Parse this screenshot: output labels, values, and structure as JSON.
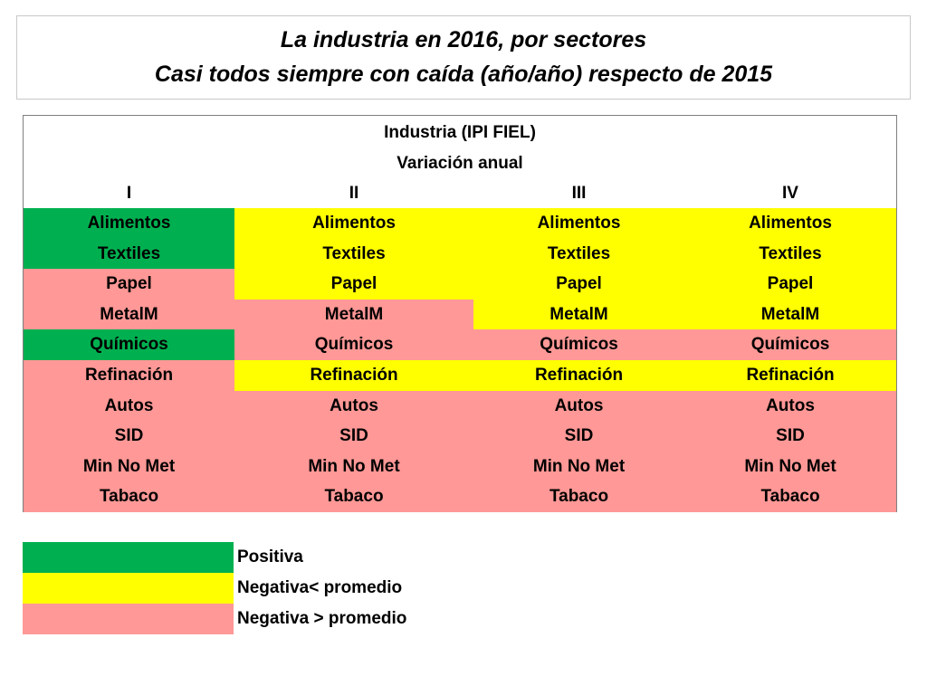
{
  "title": {
    "line1": "La industria en 2016, por sectores",
    "line2": "Casi todos siempre con caída (año/año) respecto de 2015"
  },
  "table": {
    "header1": "Industria (IPI FIEL)",
    "header2": "Variación anual",
    "quarters": [
      "I",
      "II",
      "III",
      "IV"
    ],
    "rows": [
      {
        "cells": [
          {
            "label": "Alimentos",
            "status": "positiva"
          },
          {
            "label": "Alimentos",
            "status": "negativa_menor"
          },
          {
            "label": "Alimentos",
            "status": "negativa_menor"
          },
          {
            "label": "Alimentos",
            "status": "negativa_menor"
          }
        ]
      },
      {
        "cells": [
          {
            "label": "Textiles",
            "status": "positiva"
          },
          {
            "label": "Textiles",
            "status": "negativa_menor"
          },
          {
            "label": "Textiles",
            "status": "negativa_menor"
          },
          {
            "label": "Textiles",
            "status": "negativa_menor"
          }
        ]
      },
      {
        "cells": [
          {
            "label": "Papel",
            "status": "negativa_mayor"
          },
          {
            "label": "Papel",
            "status": "negativa_menor"
          },
          {
            "label": "Papel",
            "status": "negativa_menor"
          },
          {
            "label": "Papel",
            "status": "negativa_menor"
          }
        ]
      },
      {
        "cells": [
          {
            "label": "MetalM",
            "status": "negativa_mayor"
          },
          {
            "label": "MetalM",
            "status": "negativa_mayor"
          },
          {
            "label": "MetalM",
            "status": "negativa_menor"
          },
          {
            "label": "MetalM",
            "status": "negativa_menor"
          }
        ]
      },
      {
        "cells": [
          {
            "label": "Químicos",
            "status": "positiva"
          },
          {
            "label": "Químicos",
            "status": "negativa_mayor"
          },
          {
            "label": "Químicos",
            "status": "negativa_mayor"
          },
          {
            "label": "Químicos",
            "status": "negativa_mayor"
          }
        ]
      },
      {
        "cells": [
          {
            "label": "Refinación",
            "status": "negativa_mayor"
          },
          {
            "label": "Refinación",
            "status": "negativa_menor"
          },
          {
            "label": "Refinación",
            "status": "negativa_menor"
          },
          {
            "label": "Refinación",
            "status": "negativa_menor"
          }
        ]
      },
      {
        "cells": [
          {
            "label": "Autos",
            "status": "negativa_mayor"
          },
          {
            "label": "Autos",
            "status": "negativa_mayor"
          },
          {
            "label": "Autos",
            "status": "negativa_mayor"
          },
          {
            "label": "Autos",
            "status": "negativa_mayor"
          }
        ]
      },
      {
        "cells": [
          {
            "label": "SID",
            "status": "negativa_mayor"
          },
          {
            "label": "SID",
            "status": "negativa_mayor"
          },
          {
            "label": "SID",
            "status": "negativa_mayor"
          },
          {
            "label": "SID",
            "status": "negativa_mayor"
          }
        ]
      },
      {
        "cells": [
          {
            "label": "Min No Met",
            "status": "negativa_mayor"
          },
          {
            "label": "Min No Met",
            "status": "negativa_mayor"
          },
          {
            "label": "Min No Met",
            "status": "negativa_mayor"
          },
          {
            "label": "Min No Met",
            "status": "negativa_mayor"
          }
        ]
      },
      {
        "cells": [
          {
            "label": "Tabaco",
            "status": "negativa_mayor"
          },
          {
            "label": "Tabaco",
            "status": "negativa_mayor"
          },
          {
            "label": "Tabaco",
            "status": "negativa_mayor"
          },
          {
            "label": "Tabaco",
            "status": "negativa_mayor"
          }
        ]
      }
    ]
  },
  "legend": [
    {
      "status": "positiva",
      "label": "Positiva"
    },
    {
      "status": "negativa_menor",
      "label": "Negativa< promedio"
    },
    {
      "status": "negativa_mayor",
      "label": "Negativa > promedio"
    }
  ],
  "colors": {
    "positiva": "#00b050",
    "negativa_menor": "#ffff00",
    "negativa_mayor": "#ff9896"
  }
}
